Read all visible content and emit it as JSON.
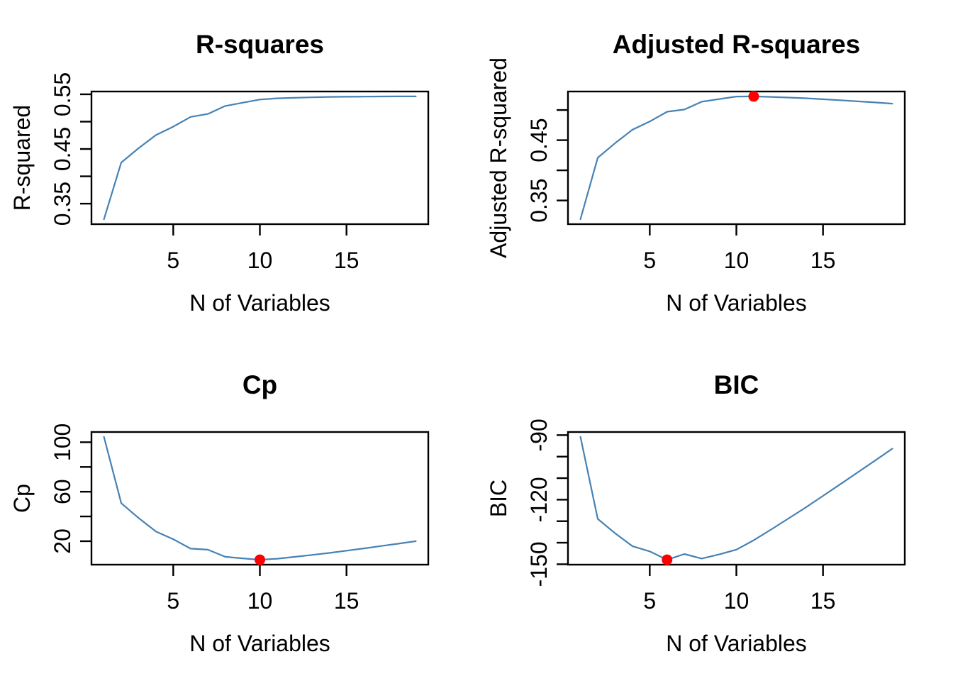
{
  "figure": {
    "description": "2x2 grid of best subset selection criterion plots",
    "background": "#ffffff"
  },
  "colors": {
    "line": "#4682B4",
    "highlight": "#FF0000",
    "axis": "#000000",
    "text": "#000000"
  },
  "chart_data": [
    {
      "type": "line",
      "title": "R-squares",
      "xlabel": "N of Variables",
      "ylabel": "R-squared",
      "x": [
        1,
        2,
        3,
        4,
        5,
        6,
        7,
        8,
        9,
        10,
        11,
        12,
        13,
        14,
        15,
        16,
        17,
        18,
        19
      ],
      "values": [
        0.3215,
        0.4252,
        0.4514,
        0.4754,
        0.4908,
        0.5087,
        0.5141,
        0.5286,
        0.5346,
        0.5405,
        0.5426,
        0.5436,
        0.5445,
        0.5452,
        0.5455,
        0.5458,
        0.546,
        0.5461,
        0.5461
      ],
      "xlim": [
        1,
        19
      ],
      "ylim": [
        0.3125,
        0.5551
      ],
      "xticks": {
        "at": [
          5,
          10,
          15
        ],
        "labels": [
          "5",
          "10",
          "15"
        ]
      },
      "yticks": {
        "at": [
          0.35,
          0.4,
          0.45,
          0.5,
          0.55
        ],
        "labels": [
          "0.35",
          "",
          "0.45",
          "",
          "0.55"
        ]
      },
      "grid": false,
      "legend": null,
      "highlight": null
    },
    {
      "type": "line",
      "title": "Adjusted R-squares",
      "xlabel": "N of Variables",
      "ylabel": "Adjusted R-squared",
      "x": [
        1,
        2,
        3,
        4,
        5,
        6,
        7,
        8,
        9,
        10,
        11,
        12,
        13,
        14,
        15,
        16,
        17,
        18,
        19
      ],
      "values": [
        0.3189,
        0.4208,
        0.4451,
        0.4673,
        0.4809,
        0.4972,
        0.5008,
        0.5137,
        0.5181,
        0.5223,
        0.5226,
        0.5217,
        0.5207,
        0.5195,
        0.5179,
        0.5162,
        0.5144,
        0.5126,
        0.5106
      ],
      "xlim": [
        1,
        19
      ],
      "ylim": [
        0.3107,
        0.5307
      ],
      "xticks": {
        "at": [
          5,
          10,
          15
        ],
        "labels": [
          "5",
          "10",
          "15"
        ]
      },
      "yticks": {
        "at": [
          0.35,
          0.4,
          0.45,
          0.5
        ],
        "labels": [
          "0.35",
          "",
          "0.45",
          ""
        ]
      },
      "grid": false,
      "legend": null,
      "highlight": {
        "x": 11,
        "y": 0.5226
      }
    },
    {
      "type": "line",
      "title": "Cp",
      "xlabel": "N of Variables",
      "ylabel": "Cp",
      "x": [
        1,
        2,
        3,
        4,
        5,
        6,
        7,
        8,
        9,
        10,
        11,
        12,
        13,
        14,
        15,
        16,
        17,
        18,
        19
      ],
      "values": [
        104.28,
        50.72,
        38.69,
        27.86,
        21.61,
        14.02,
        13.13,
        7.4,
        6.16,
        5.01,
        5.87,
        7.33,
        8.89,
        10.48,
        12.35,
        14.19,
        16.09,
        18.02,
        20.0
      ],
      "xlim": [
        1,
        19
      ],
      "ylim": [
        1.04,
        108.25
      ],
      "xticks": {
        "at": [
          5,
          10,
          15
        ],
        "labels": [
          "5",
          "10",
          "15"
        ]
      },
      "yticks": {
        "at": [
          20,
          40,
          60,
          80,
          100
        ],
        "labels": [
          "20",
          "",
          "60",
          "",
          "100"
        ]
      },
      "grid": false,
      "legend": null,
      "highlight": {
        "x": 10,
        "y": 5.01
      }
    },
    {
      "type": "line",
      "title": "BIC",
      "xlabel": "N of Variables",
      "ylabel": "BIC",
      "x": [
        1,
        2,
        3,
        4,
        5,
        6,
        7,
        8,
        9,
        10,
        11,
        12,
        13,
        14,
        15,
        16,
        17,
        18,
        19
      ],
      "values": [
        -90.85,
        -128.93,
        -135.63,
        -141.59,
        -144.04,
        -147.92,
        -145.26,
        -147.38,
        -145.44,
        -143.22,
        -138.86,
        -133.87,
        -128.78,
        -123.64,
        -118.22,
        -112.82,
        -107.35,
        -101.86,
        -96.3
      ],
      "xlim": [
        1,
        19
      ],
      "ylim": [
        -150.2,
        -88.56
      ],
      "xticks": {
        "at": [
          5,
          10,
          15
        ],
        "labels": [
          "5",
          "10",
          "15"
        ]
      },
      "yticks": {
        "at": [
          -150,
          -140,
          -130,
          -120,
          -110,
          -100,
          -90
        ],
        "labels": [
          "-150",
          "",
          "",
          "-120",
          "",
          "",
          "-90"
        ]
      },
      "grid": false,
      "legend": null,
      "highlight": {
        "x": 6,
        "y": -147.92
      }
    }
  ]
}
